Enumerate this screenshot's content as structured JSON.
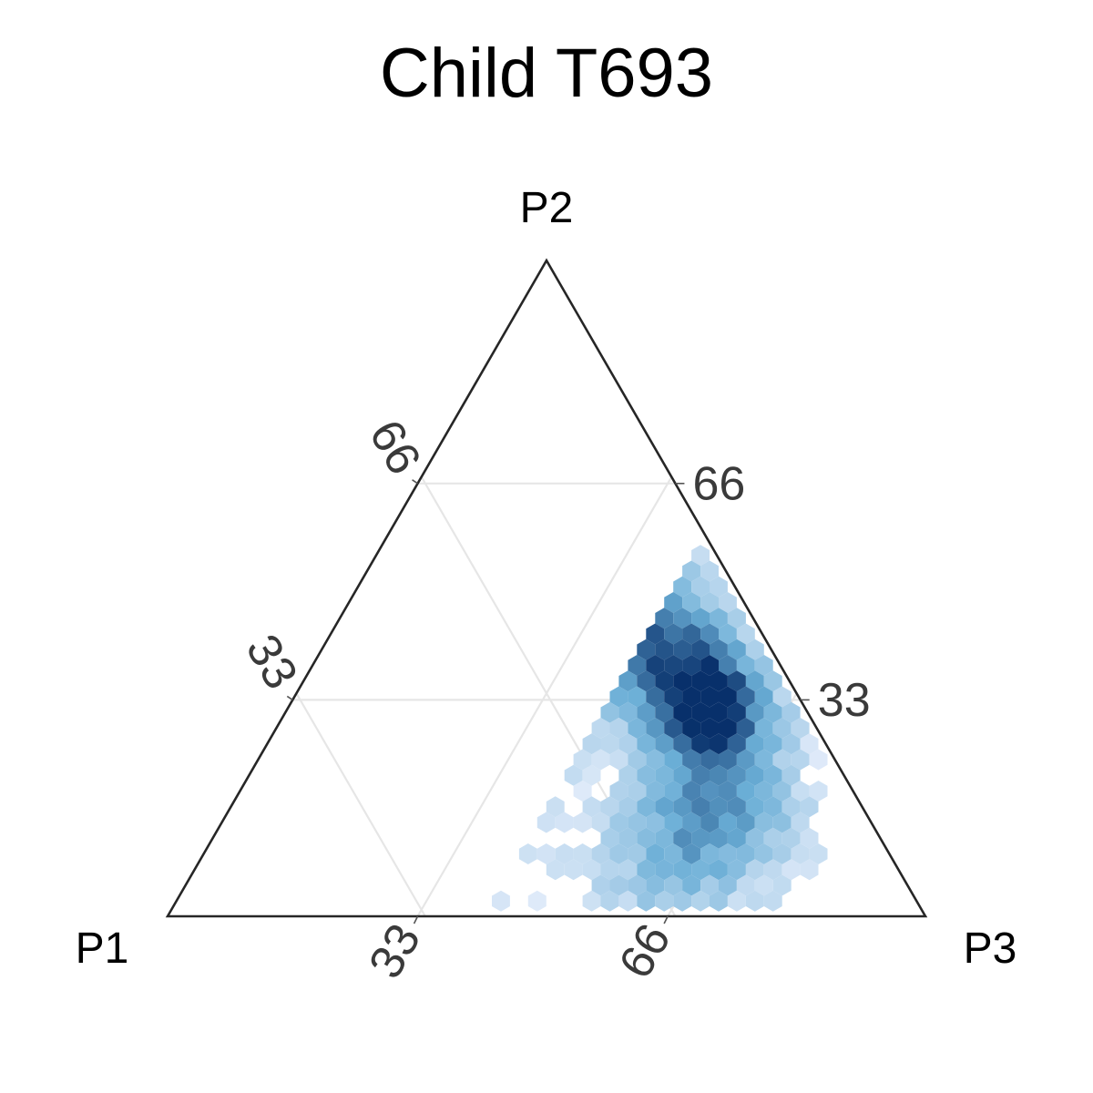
{
  "chart_data": {
    "type": "heatmap",
    "subtype": "ternary-hexbin",
    "title": "Child T693",
    "vertices": {
      "left": "P1",
      "top": "P2",
      "right": "P3"
    },
    "ticks": {
      "P1": [
        "33",
        "66"
      ],
      "P2": [
        "66",
        "33"
      ],
      "P3": [
        "33",
        "66"
      ]
    },
    "grid": true,
    "colors": {
      "low": "#e3ecfa",
      "mid": "#6aaed6",
      "high": "#08306b",
      "outline": "#262626",
      "grid": "#e6e6e6"
    },
    "density": {
      "description_units": "percent composition P1/P2/P3, density 0-1",
      "clusters": [
        {
          "p1": 12,
          "p2": 32,
          "p3": 56,
          "weight": 1.0,
          "spread": 7
        },
        {
          "p1": 14,
          "p2": 42,
          "p3": 44,
          "weight": 0.7,
          "spread": 9
        },
        {
          "p1": 18,
          "p2": 18,
          "p3": 64,
          "weight": 0.55,
          "spread": 10
        },
        {
          "p1": 16,
          "p2": 58,
          "p3": 26,
          "weight": 0.35,
          "spread": 10
        },
        {
          "p1": 26,
          "p2": 40,
          "p3": 34,
          "weight": 0.25,
          "spread": 11
        },
        {
          "p1": 30,
          "p2": 8,
          "p3": 62,
          "weight": 0.3,
          "spread": 10
        }
      ],
      "bounds": {
        "p3_min": 46,
        "p3_max": 84,
        "p2_max": 72
      }
    }
  }
}
